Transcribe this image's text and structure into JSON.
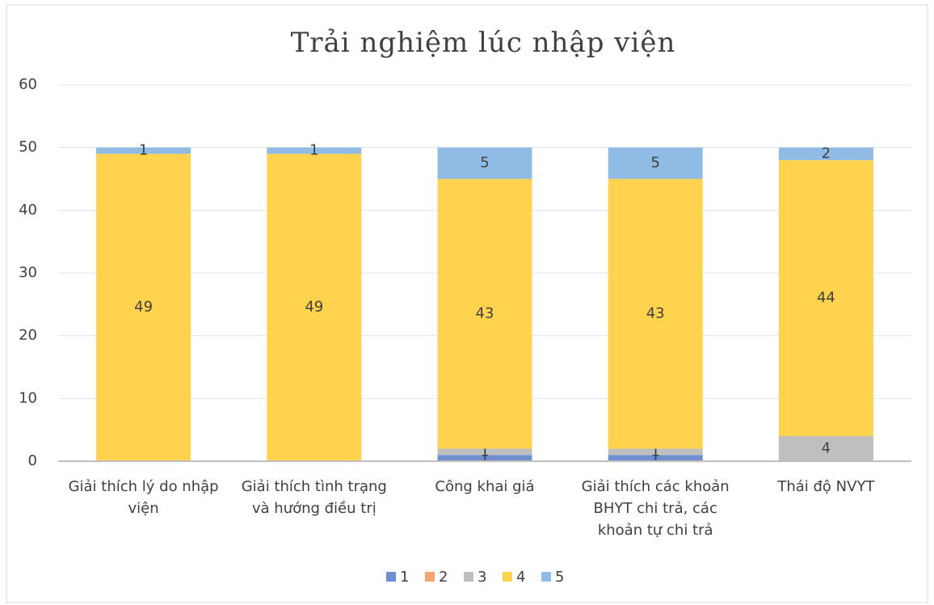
{
  "chart_data": {
    "type": "stacked_bar",
    "title": "Trải nghiệm lúc nhập viện",
    "categories": [
      "Giải thích lý do nhập viện",
      "Giải thích tình trạng và hướng điều trị",
      "Công khai giá",
      "Giải thích các khoản BHYT chi trả, các khoản tự chi trả",
      "Thái độ NVYT"
    ],
    "series": [
      {
        "name": "1",
        "color": "#6f8fd0",
        "values": [
          0,
          0,
          1,
          1,
          0
        ]
      },
      {
        "name": "2",
        "color": "#f4a470",
        "values": [
          0,
          0,
          0,
          0,
          0
        ]
      },
      {
        "name": "3",
        "color": "#bfbfbf",
        "values": [
          0,
          0,
          1,
          1,
          4
        ]
      },
      {
        "name": "4",
        "color": "#ffd34d",
        "values": [
          49,
          49,
          43,
          43,
          44
        ]
      },
      {
        "name": "5",
        "color": "#8fbbe4",
        "values": [
          1,
          1,
          5,
          5,
          2
        ]
      }
    ],
    "ylim": [
      0,
      60
    ],
    "yticks": [
      0,
      10,
      20,
      30,
      40,
      50,
      60
    ],
    "grid": true,
    "legend": "bottom"
  }
}
